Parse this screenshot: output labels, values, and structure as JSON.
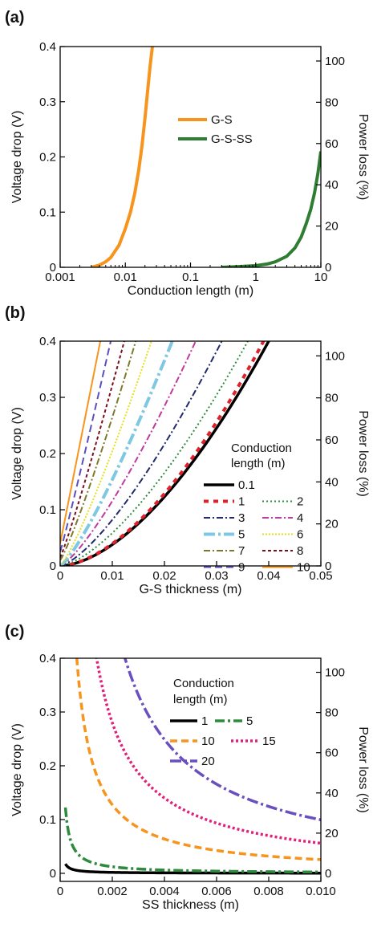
{
  "chart_data": [
    {
      "panel_label": "(a)",
      "type": "line",
      "xscale": "log",
      "xlim": [
        0.001,
        10
      ],
      "ylim": [
        0,
        0.4
      ],
      "y2lim": [
        0,
        107
      ],
      "xlabel": "Conduction length (m)",
      "ylabel": "Voltage drop (V)",
      "y2label": "Power loss (%)",
      "xticks": [
        "0.001",
        "0.01",
        "0.1",
        "1",
        "10"
      ],
      "yticks": [
        "0",
        "0.1",
        "0.2",
        "0.3",
        "0.4"
      ],
      "y2ticks": [
        "0",
        "20",
        "40",
        "60",
        "80",
        "100"
      ],
      "legend_position": "center-right",
      "series": [
        {
          "name": "G-S",
          "color": "#f7941d",
          "dash": "solid",
          "width": 4,
          "x": [
            0.003,
            0.004,
            0.005,
            0.006,
            0.008,
            0.01,
            0.012,
            0.014,
            0.016,
            0.018,
            0.02,
            0.022,
            0.024,
            0.026
          ],
          "y": [
            0.0,
            0.004,
            0.01,
            0.018,
            0.04,
            0.07,
            0.1,
            0.135,
            0.175,
            0.22,
            0.27,
            0.32,
            0.365,
            0.4
          ]
        },
        {
          "name": "G-S-SS",
          "color": "#2e7d32",
          "dash": "solid",
          "width": 4,
          "x": [
            0.3,
            0.5,
            1,
            1.5,
            2,
            3,
            4,
            5,
            6,
            7,
            8,
            9,
            10
          ],
          "y": [
            0.0,
            0.001,
            0.003,
            0.006,
            0.01,
            0.02,
            0.035,
            0.055,
            0.08,
            0.105,
            0.135,
            0.17,
            0.21
          ]
        }
      ]
    },
    {
      "panel_label": "(b)",
      "type": "line",
      "xscale": "linear",
      "xlim": [
        0,
        0.05
      ],
      "ylim": [
        0,
        0.4
      ],
      "y2lim": [
        0,
        107
      ],
      "xlabel": "G-S thickness (m)",
      "ylabel": "Voltage drop (V)",
      "y2label": "Power loss (%)",
      "xticks": [
        "0",
        "0.01",
        "0.02",
        "0.03",
        "0.04",
        "0.05"
      ],
      "yticks": [
        "0",
        "0.1",
        "0.2",
        "0.3",
        "0.4"
      ],
      "y2ticks": [
        "0",
        "20",
        "40",
        "60",
        "80",
        "100"
      ],
      "legend_title": [
        "Conduction",
        "length (m)"
      ],
      "legend_position": "lower-right",
      "series": [
        {
          "name": "0.1",
          "color": "#000000",
          "dash": "solid",
          "width": 3.5,
          "xend": 0.04,
          "power": 1.7,
          "y0": 0.0
        },
        {
          "name": "1",
          "color": "#e0202a",
          "dash": "6 6",
          "width": 4,
          "xend": 0.039,
          "power": 1.7,
          "y0": 0.0
        },
        {
          "name": "2",
          "color": "#2e8b3e",
          "dash": "2 3",
          "width": 2,
          "xend": 0.036,
          "power": 1.5,
          "y0": 0.0
        },
        {
          "name": "3",
          "color": "#1f2a6b",
          "dash": "8 3 2 3",
          "width": 2,
          "xend": 0.031,
          "power": 1.4,
          "y0": 0.0
        },
        {
          "name": "4",
          "color": "#c0399e",
          "dash": "8 3 2 3",
          "width": 2,
          "xend": 0.026,
          "power": 1.3,
          "y0": 0.0
        },
        {
          "name": "5",
          "color": "#7ec8e3",
          "dash": "14 4 3 4",
          "width": 4,
          "xend": 0.0215,
          "power": 1.25,
          "y0": 0.0
        },
        {
          "name": "6",
          "color": "#e6df1c",
          "dash": "2 2",
          "width": 2,
          "xend": 0.0175,
          "power": 1.2,
          "y0": 0.0
        },
        {
          "name": "7",
          "color": "#7d7a2a",
          "dash": "8 3 2 3",
          "width": 2,
          "xend": 0.0145,
          "power": 1.15,
          "y0": 0.01
        },
        {
          "name": "8",
          "color": "#7a0e1a",
          "dash": "4 3",
          "width": 2,
          "xend": 0.0123,
          "power": 1.1,
          "y0": 0.015
        },
        {
          "name": "9",
          "color": "#5a4fbf",
          "dash": "9 5",
          "width": 2,
          "xend": 0.0097,
          "power": 1.05,
          "y0": 0.025
        },
        {
          "name": "10",
          "color": "#f7941d",
          "dash": "solid",
          "width": 2,
          "xend": 0.0077,
          "power": 1.0,
          "y0": 0.04
        }
      ]
    },
    {
      "panel_label": "(c)",
      "type": "line",
      "xscale": "linear",
      "xlim": [
        0,
        0.01
      ],
      "ylim": [
        -0.015,
        0.4
      ],
      "y2lim": [
        -4,
        107
      ],
      "xlabel": "SS thickness (m)",
      "ylabel": "Voltage drop (V)",
      "y2label": "Power loss (%)",
      "xticks": [
        "0",
        "0.002",
        "0.004",
        "0.006",
        "0.008",
        "0.010"
      ],
      "yticks": [
        "0",
        "0.1",
        "0.2",
        "0.3",
        "0.4"
      ],
      "y2ticks": [
        "0",
        "20",
        "40",
        "60",
        "80",
        "100"
      ],
      "legend_title": [
        "Conduction",
        "length (m)"
      ],
      "legend_position": "top-right",
      "series": [
        {
          "name": "1",
          "color": "#000000",
          "dash": "solid",
          "width": 3.5,
          "k": 3.5e-06
        },
        {
          "name": "5",
          "color": "#2e8b3e",
          "dash": "12 4 3 4",
          "width": 3.5,
          "k": 2.45e-05
        },
        {
          "name": "10",
          "color": "#f7941d",
          "dash": "9 5",
          "width": 3.5,
          "k": 0.000255
        },
        {
          "name": "15",
          "color": "#e0207a",
          "dash": "3 3",
          "width": 3.5,
          "k": 0.00056
        },
        {
          "name": "20",
          "color": "#6a4fbf",
          "dash": "14 4 3 4",
          "width": 3.5,
          "k": 0.000995
        }
      ]
    }
  ]
}
